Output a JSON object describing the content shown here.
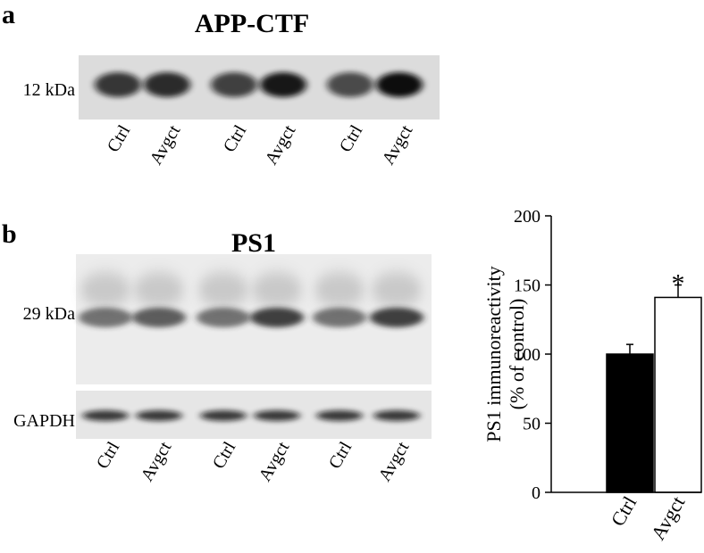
{
  "panel_a": {
    "label": "a",
    "title": "APP-CTF",
    "marker": "12 kDa",
    "lanes": [
      "Ctrl",
      "Avgct",
      "Ctrl",
      "Avgct",
      "Ctrl",
      "Avgct"
    ]
  },
  "panel_b": {
    "label": "b",
    "title": "PS1",
    "marker": "29 kDa",
    "loading_control": "GAPDH",
    "lanes": [
      "Ctrl",
      "Avgct",
      "Ctrl",
      "Avgct",
      "Ctrl",
      "Avgct"
    ]
  },
  "chart_data": {
    "type": "bar",
    "y_label": [
      "PS1 immunoreactivity",
      "(% of control)"
    ],
    "categories": [
      "Ctrl",
      "Avgct"
    ],
    "values": [
      100,
      141
    ],
    "errors": [
      7,
      9
    ],
    "colors": [
      "#000000",
      "#ffffff"
    ],
    "annotations": [
      null,
      "*"
    ],
    "ylim": [
      0,
      200
    ],
    "yticks": [
      0,
      50,
      100,
      150,
      200
    ]
  }
}
